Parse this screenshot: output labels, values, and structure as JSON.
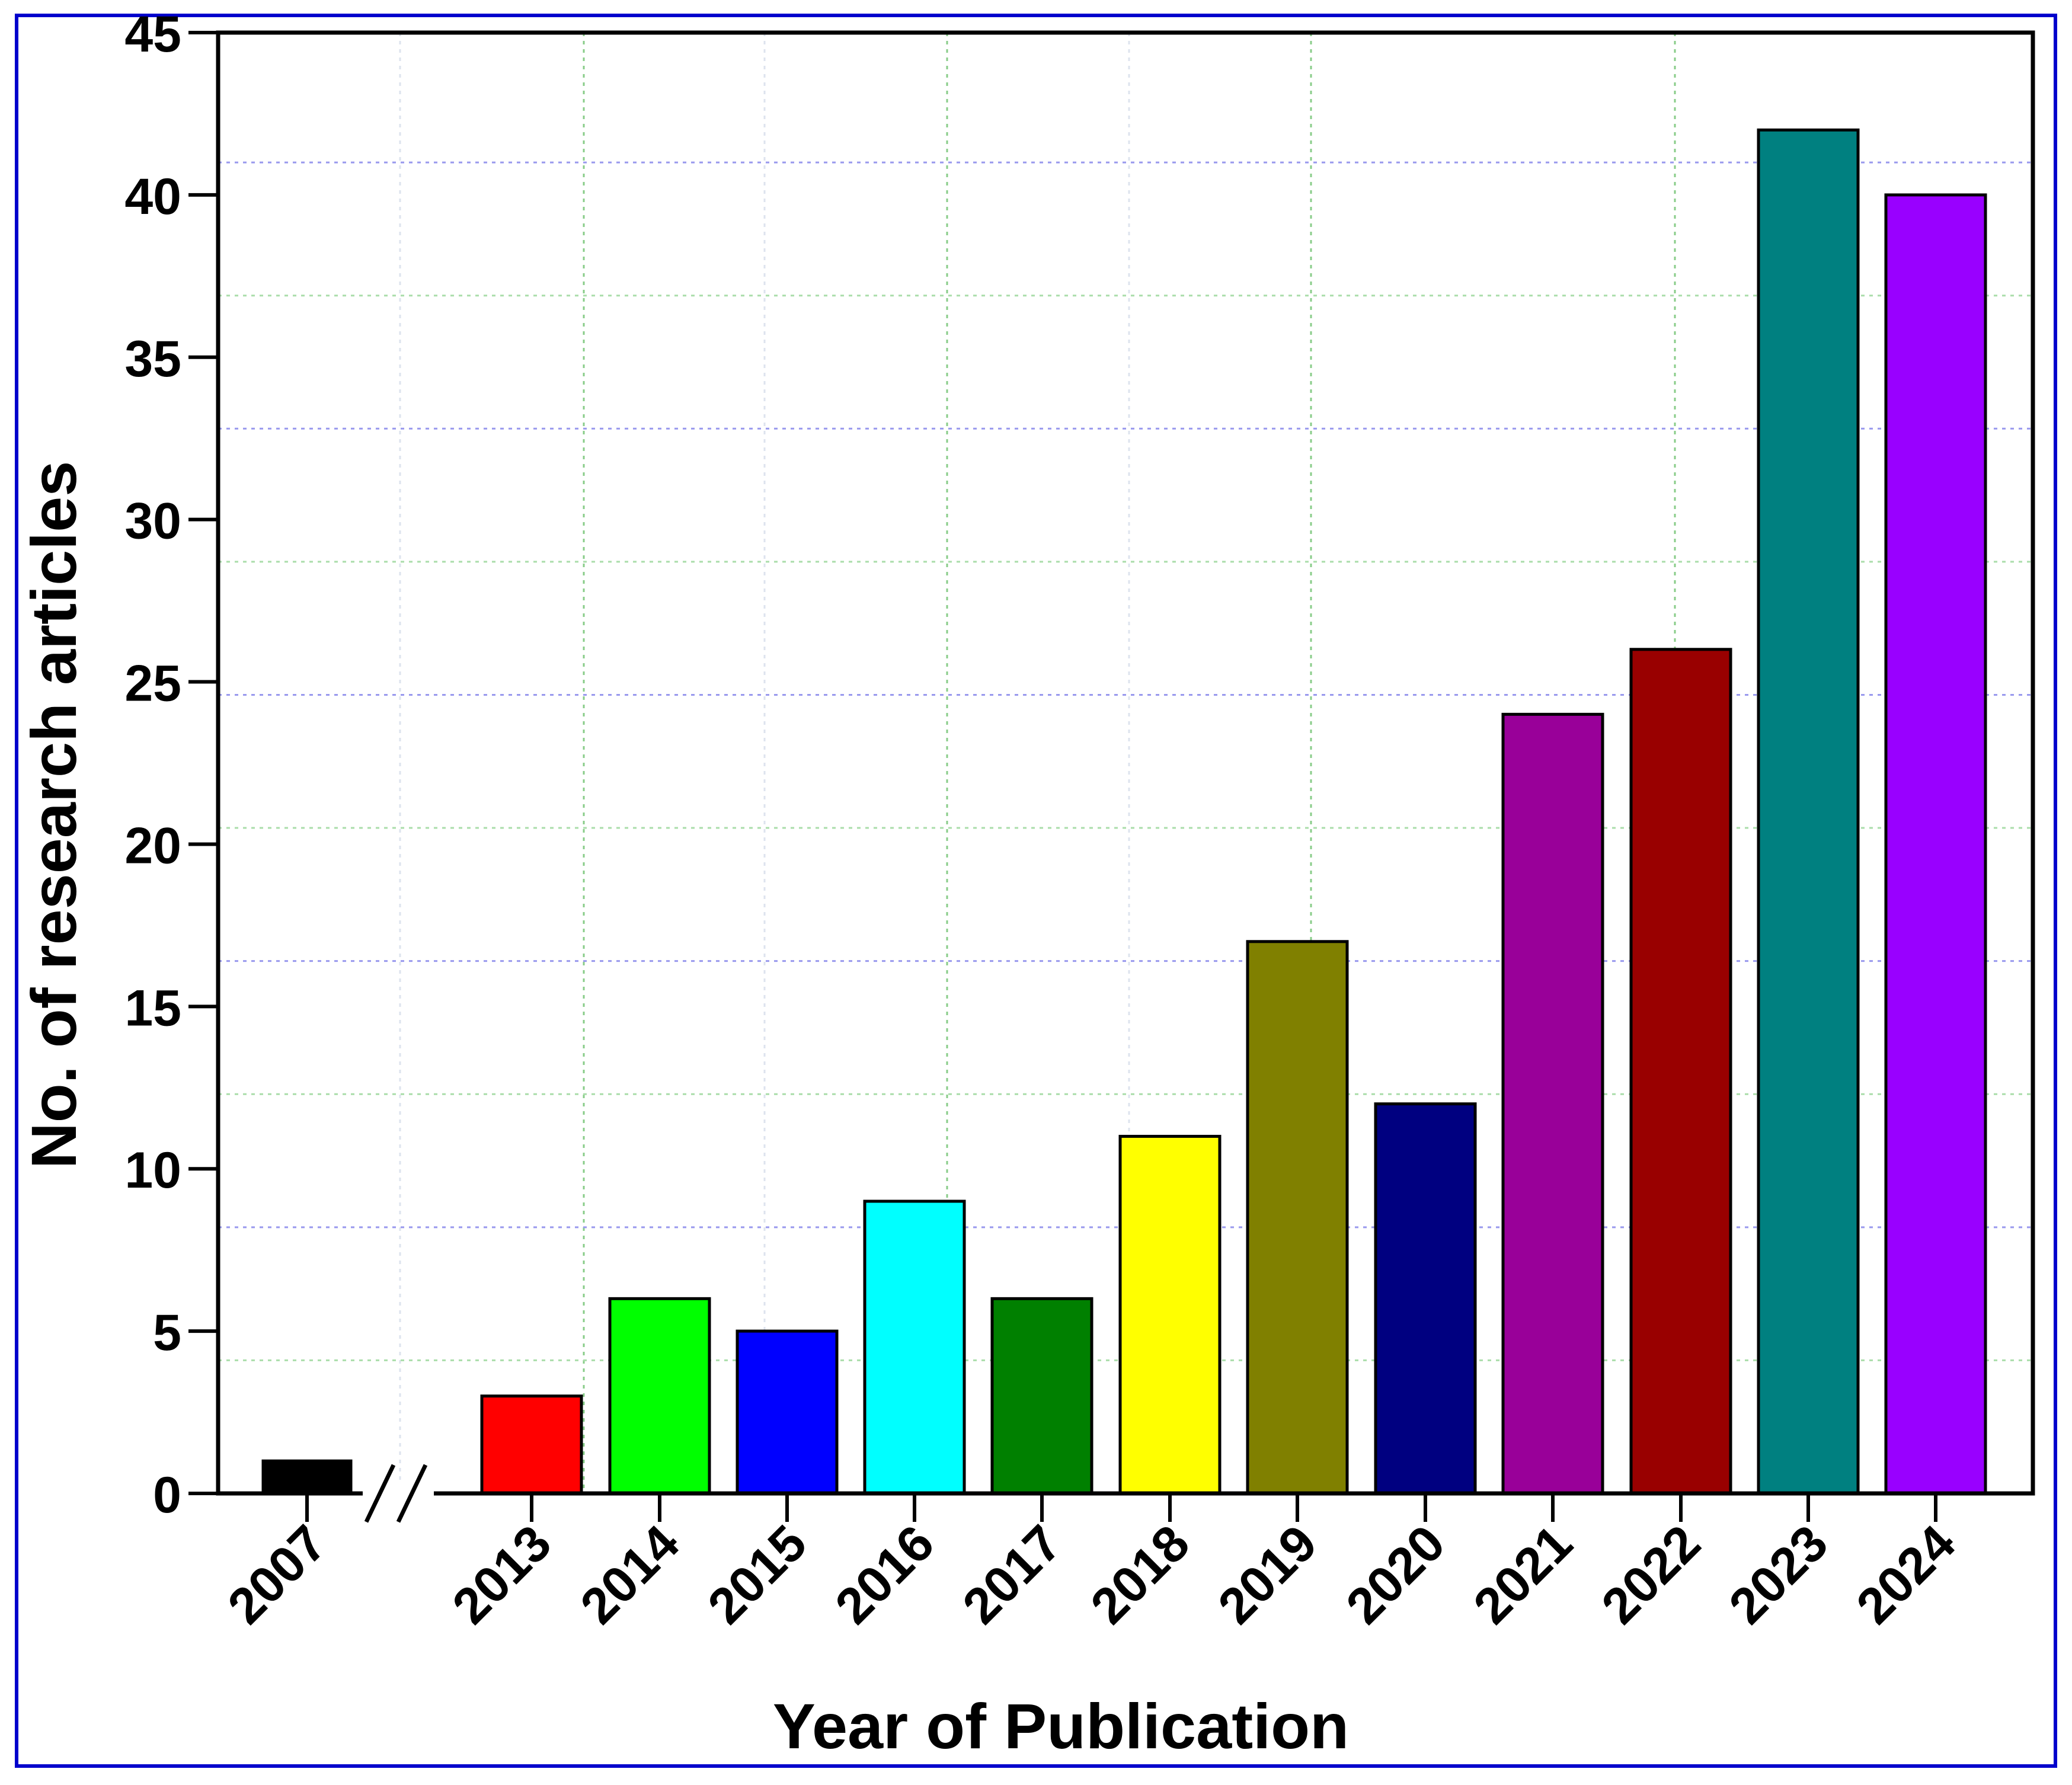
{
  "chart_data": {
    "type": "bar",
    "title": "",
    "xlabel": "Year of Publication",
    "ylabel": "No. of research articles",
    "categories": [
      "2007",
      "2013",
      "2014",
      "2015",
      "2016",
      "2017",
      "2018",
      "2019",
      "2020",
      "2021",
      "2022",
      "2023",
      "2024"
    ],
    "values": [
      1,
      3,
      6,
      5,
      9,
      6,
      11,
      17,
      12,
      24,
      26,
      42,
      40
    ],
    "colors": [
      "#000000",
      "#ff0000",
      "#00ff00",
      "#0000ff",
      "#00ffff",
      "#008000",
      "#ffff00",
      "#808000",
      "#000080",
      "#990099",
      "#990000",
      "#008080",
      "#9900ff"
    ],
    "ylim": [
      0,
      45
    ],
    "yticks": [
      "0",
      "5",
      "10",
      "15",
      "20",
      "25",
      "30",
      "35",
      "40",
      "45"
    ],
    "axis_break": "between 2007 and 2013",
    "grid": true,
    "frame_color": "#0000cc"
  }
}
